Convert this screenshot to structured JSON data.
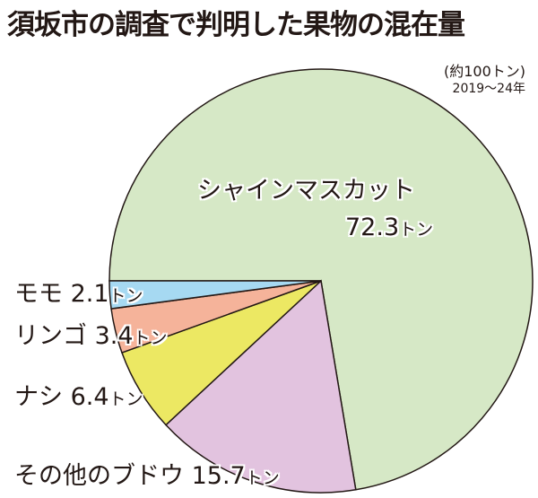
{
  "chart_data": {
    "type": "pie",
    "title": "須坂市の調査で判明した果物の混在量",
    "subtitle": [
      "(約100トン)",
      "2019～24年"
    ],
    "unit": "トン",
    "slices": [
      {
        "label": "シャインマスカット",
        "value": 72.3,
        "color": "#d6e8c6"
      },
      {
        "label": "その他のブドウ",
        "value": 15.7,
        "color": "#e2c3df"
      },
      {
        "label": "ナシ",
        "value": 6.4,
        "color": "#ece863"
      },
      {
        "label": "リンゴ",
        "value": 3.4,
        "color": "#f5b39a"
      },
      {
        "label": "モモ",
        "value": 2.1,
        "color": "#a6d9f2"
      }
    ],
    "start_direction": "left (9 o'clock), clockwise"
  }
}
